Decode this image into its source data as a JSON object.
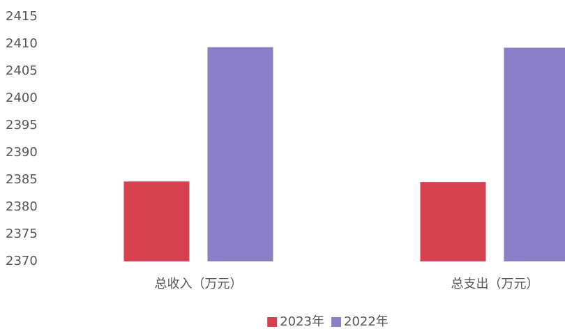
{
  "chart_data": {
    "type": "bar",
    "categories": [
      "总收入（万元）",
      "总支出（万元）"
    ],
    "series": [
      {
        "name": "2023年",
        "color": "#d5414f",
        "values": [
          2384.7,
          2384.6
        ]
      },
      {
        "name": "2022年",
        "color": "#8a7fc6",
        "values": [
          2409.4,
          2409.3
        ]
      }
    ],
    "ylim": [
      2370,
      2415
    ],
    "yticks": [
      2370,
      2375,
      2380,
      2385,
      2390,
      2395,
      2400,
      2405,
      2410,
      2415
    ],
    "grid": false,
    "legend": "bottom"
  }
}
